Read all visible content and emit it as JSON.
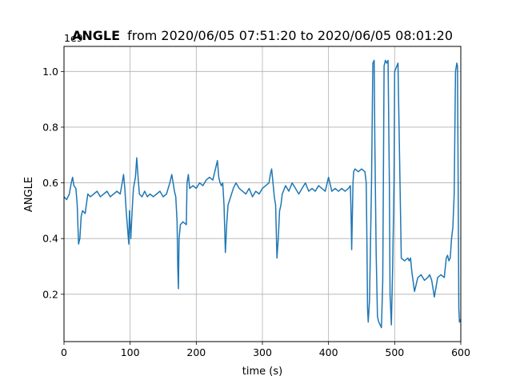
{
  "chart_data": {
    "type": "line",
    "title_bold": "ANGLE",
    "title_rest": "from 2020/06/05 07:51:20 to 2020/06/05 08:01:20",
    "xlabel": "time (s)",
    "ylabel": "ANGLE",
    "y_offset_label": "1e9",
    "xlim": [
      0,
      600
    ],
    "ylim": [
      0.03,
      1.09
    ],
    "y_scale_note": "values multiplied by 1e9",
    "xticks": [
      0,
      100,
      200,
      300,
      400,
      500,
      600
    ],
    "xtick_labels": [
      "0",
      "100",
      "200",
      "300",
      "400",
      "500",
      "600"
    ],
    "yticks": [
      0.2,
      0.4,
      0.6,
      0.8,
      1.0
    ],
    "ytick_labels": [
      "0.2",
      "0.4",
      "0.6",
      "0.8",
      "1.0"
    ],
    "grid": true,
    "series": [
      {
        "color": "#1f77b4",
        "x": [
          0,
          4,
          8,
          11,
          13,
          15,
          18,
          20,
          22,
          24,
          26,
          28,
          32,
          36,
          40,
          45,
          50,
          55,
          60,
          65,
          70,
          75,
          80,
          85,
          88,
          90,
          92,
          94,
          96,
          98,
          99,
          101,
          103,
          105,
          108,
          110,
          112,
          114,
          118,
          122,
          126,
          130,
          135,
          140,
          145,
          150,
          155,
          160,
          163,
          165,
          167,
          169,
          171,
          172,
          173,
          174,
          176,
          180,
          185,
          186,
          188,
          190,
          195,
          200,
          205,
          210,
          215,
          220,
          225,
          228,
          232,
          234,
          236,
          238,
          240,
          242,
          244,
          246,
          248,
          252,
          256,
          260,
          265,
          270,
          275,
          280,
          285,
          290,
          295,
          300,
          305,
          310,
          312,
          314,
          316,
          318,
          320,
          322,
          324,
          326,
          328,
          330,
          335,
          340,
          345,
          350,
          355,
          360,
          365,
          370,
          375,
          380,
          385,
          390,
          395,
          400,
          405,
          410,
          415,
          420,
          425,
          430,
          433,
          434,
          435,
          436,
          437,
          438,
          440,
          445,
          450,
          455,
          457,
          458,
          459,
          460,
          462,
          465,
          467,
          469,
          470,
          472,
          474,
          476,
          478,
          480,
          482,
          484,
          486,
          488,
          490,
          492,
          493,
          495,
          497,
          499,
          500,
          505,
          510,
          515,
          520,
          522,
          524,
          526,
          530,
          535,
          540,
          545,
          550,
          553,
          556,
          560,
          565,
          570,
          575,
          578,
          580,
          582,
          584,
          586,
          588,
          590,
          592,
          594,
          595,
          596,
          597,
          598,
          600
        ],
        "y": [
          0.55,
          0.54,
          0.56,
          0.6,
          0.62,
          0.59,
          0.58,
          0.52,
          0.38,
          0.4,
          0.48,
          0.5,
          0.49,
          0.56,
          0.55,
          0.56,
          0.57,
          0.55,
          0.56,
          0.57,
          0.55,
          0.56,
          0.57,
          0.56,
          0.6,
          0.63,
          0.58,
          0.5,
          0.44,
          0.38,
          0.5,
          0.4,
          0.5,
          0.58,
          0.62,
          0.69,
          0.62,
          0.56,
          0.55,
          0.57,
          0.55,
          0.56,
          0.55,
          0.56,
          0.57,
          0.55,
          0.56,
          0.6,
          0.63,
          0.6,
          0.57,
          0.55,
          0.46,
          0.3,
          0.22,
          0.4,
          0.45,
          0.46,
          0.45,
          0.6,
          0.63,
          0.58,
          0.59,
          0.58,
          0.6,
          0.59,
          0.61,
          0.62,
          0.61,
          0.64,
          0.68,
          0.62,
          0.6,
          0.59,
          0.6,
          0.52,
          0.35,
          0.45,
          0.52,
          0.55,
          0.58,
          0.6,
          0.58,
          0.57,
          0.56,
          0.58,
          0.55,
          0.57,
          0.56,
          0.58,
          0.59,
          0.6,
          0.63,
          0.65,
          0.6,
          0.55,
          0.52,
          0.33,
          0.4,
          0.5,
          0.52,
          0.56,
          0.59,
          0.57,
          0.6,
          0.58,
          0.56,
          0.58,
          0.6,
          0.57,
          0.58,
          0.57,
          0.59,
          0.58,
          0.57,
          0.62,
          0.57,
          0.58,
          0.57,
          0.58,
          0.57,
          0.58,
          0.59,
          0.5,
          0.36,
          0.48,
          0.6,
          0.64,
          0.65,
          0.64,
          0.65,
          0.64,
          0.6,
          0.4,
          0.15,
          0.1,
          0.18,
          0.6,
          1.03,
          1.04,
          0.75,
          0.35,
          0.12,
          0.1,
          0.09,
          0.08,
          0.25,
          1.02,
          1.04,
          1.03,
          1.04,
          0.6,
          0.2,
          0.09,
          0.3,
          0.6,
          1.0,
          1.03,
          0.33,
          0.32,
          0.33,
          0.32,
          0.33,
          0.28,
          0.21,
          0.26,
          0.27,
          0.25,
          0.26,
          0.27,
          0.25,
          0.19,
          0.26,
          0.27,
          0.26,
          0.33,
          0.34,
          0.32,
          0.33,
          0.4,
          0.44,
          0.56,
          1.0,
          1.03,
          1.02,
          0.6,
          0.15,
          0.1,
          0.11
        ]
      }
    ]
  }
}
